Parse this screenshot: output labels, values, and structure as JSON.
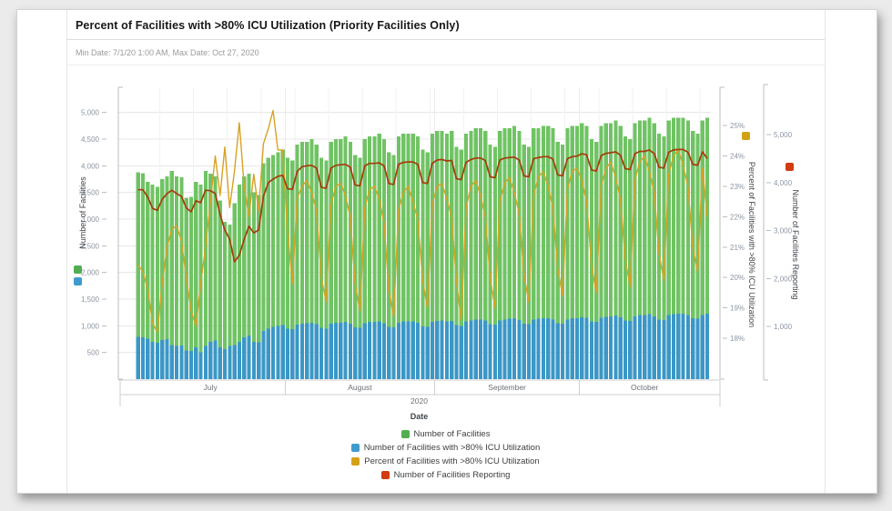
{
  "card": {
    "title": "Percent of Facilities with >80% ICU Utilization (Priority Facilities Only)",
    "subtitle": "Min Date: 7/1/20 1:00 AM, Max Date: Oct 27, 2020"
  },
  "chart_data": {
    "type": "combo: stacked-bar + line",
    "title": "Percent of Facilities with >80% ICU Utilization (Priority Facilities Only)",
    "x": {
      "label": "Date",
      "year": "2020",
      "months": [
        {
          "name": "July",
          "days": 31
        },
        {
          "name": "August",
          "days": 31
        },
        {
          "name": "September",
          "days": 30
        },
        {
          "name": "October",
          "days": 27
        }
      ],
      "start_date": "7/1/20",
      "end_date": "Oct 27, 2020"
    },
    "axes": {
      "left": {
        "title": "Number of Facilities",
        "ticks": [
          500,
          1000,
          1500,
          2000,
          2500,
          3000,
          3500,
          4000,
          4500,
          5000
        ],
        "max": 5470
      },
      "right_percent": {
        "title": "Percent of Facilities with >80% ICU Utilization",
        "ticks": [
          18,
          19,
          20,
          21,
          22,
          23,
          24,
          25
        ],
        "unit": "%"
      },
      "right_reporting": {
        "title": "Number of Facilities Reporting",
        "ticks": [
          1000,
          2000,
          3000,
          4000,
          5000
        ],
        "max": 6080
      }
    },
    "grid": {
      "horizontal": true,
      "vertical_weekly": true
    },
    "legend_position": "bottom",
    "series": [
      {
        "name": "Number of Facilities",
        "type": "bar-stack-total",
        "axis": "left",
        "color": "#70c364",
        "swatch": "#52ad52",
        "values": [
          3880,
          3860,
          3700,
          3650,
          3600,
          3750,
          3800,
          3900,
          3800,
          3780,
          3400,
          3420,
          3700,
          3650,
          3900,
          3850,
          3800,
          3350,
          2950,
          2900,
          3300,
          3650,
          3800,
          3850,
          3500,
          3450,
          4050,
          4150,
          4200,
          4250,
          4300,
          4150,
          4100,
          4400,
          4450,
          4450,
          4500,
          4400,
          4150,
          4100,
          4450,
          4500,
          4500,
          4550,
          4450,
          4200,
          4150,
          4500,
          4550,
          4550,
          4600,
          4500,
          4250,
          4200,
          4550,
          4600,
          4600,
          4600,
          4550,
          4300,
          4250,
          4600,
          4650,
          4650,
          4600,
          4650,
          4350,
          4300,
          4600,
          4650,
          4700,
          4700,
          4650,
          4400,
          4350,
          4650,
          4700,
          4700,
          4750,
          4650,
          4400,
          4350,
          4700,
          4700,
          4750,
          4750,
          4700,
          4450,
          4400,
          4700,
          4750,
          4750,
          4800,
          4750,
          4500,
          4450,
          4750,
          4800,
          4800,
          4850,
          4750,
          4550,
          4500,
          4800,
          4850,
          4850,
          4900,
          4800,
          4600,
          4550,
          4850,
          4900,
          4900,
          4900,
          4850,
          4650,
          4600,
          4850,
          4900
        ]
      },
      {
        "name": "Number of Facilities with >80% ICU Utilization",
        "type": "bar-stack-bottom",
        "axis": "left",
        "color": "#3b97c6",
        "swatch": "#3d9bce",
        "values": [
          790,
          780,
          760,
          700,
          680,
          730,
          750,
          640,
          620,
          630,
          540,
          530,
          600,
          500,
          620,
          700,
          720,
          600,
          560,
          620,
          640,
          700,
          780,
          820,
          700,
          690,
          900,
          950,
          980,
          1000,
          1010,
          950,
          940,
          1020,
          1040,
          1050,
          1060,
          1030,
          960,
          950,
          1040,
          1060,
          1060,
          1070,
          1040,
          970,
          960,
          1050,
          1070,
          1070,
          1080,
          1050,
          980,
          970,
          1060,
          1080,
          1080,
          1080,
          1060,
          990,
          980,
          1070,
          1090,
          1100,
          1080,
          1090,
          1010,
          1000,
          1080,
          1100,
          1120,
          1120,
          1100,
          1030,
          1020,
          1100,
          1120,
          1130,
          1140,
          1110,
          1040,
          1030,
          1120,
          1130,
          1140,
          1140,
          1120,
          1050,
          1040,
          1120,
          1140,
          1140,
          1160,
          1150,
          1080,
          1070,
          1150,
          1170,
          1180,
          1190,
          1160,
          1100,
          1090,
          1180,
          1200,
          1200,
          1220,
          1180,
          1120,
          1110,
          1200,
          1220,
          1230,
          1230,
          1200,
          1140,
          1130,
          1200,
          1230
        ]
      },
      {
        "name": "Percent of Facilities with >80% ICU Utilization",
        "type": "line",
        "axis": "right_percent",
        "color": "#d8a222",
        "swatch": "#d4a017",
        "values": [
          20.4,
          20.2,
          19.6,
          18.5,
          18.2,
          19.8,
          21,
          21.6,
          21.7,
          21.2,
          20,
          18.9,
          18.4,
          19.8,
          21,
          22.5,
          24,
          22.7,
          24.3,
          22.3,
          23.5,
          25.1,
          23,
          22,
          23.4,
          22.2,
          24.4,
          24.9,
          25.5,
          24.2,
          24.2,
          21.5,
          19.8,
          22.6,
          23,
          23.2,
          22.8,
          22.2,
          20,
          19.2,
          22.4,
          23,
          23.1,
          22.7,
          22,
          19.8,
          18.9,
          22.3,
          22.9,
          23,
          22.6,
          21.8,
          19.6,
          18.7,
          22.2,
          22.8,
          23,
          22.5,
          21.9,
          19.9,
          19,
          22.4,
          23,
          23.1,
          22.6,
          22,
          19.9,
          18.6,
          22.3,
          23,
          23.2,
          22.7,
          22,
          20,
          19,
          22.5,
          23.1,
          23.3,
          22.8,
          22.1,
          20.1,
          19.2,
          22.7,
          23.3,
          23.5,
          23,
          22.3,
          20.3,
          19.4,
          22.9,
          23.5,
          23.6,
          23.2,
          22.5,
          20.4,
          19.5,
          23,
          23.6,
          23.8,
          23.3,
          22.6,
          20.6,
          19.7,
          23.2,
          23.8,
          24,
          23.5,
          22.8,
          20.8,
          19.9,
          23.4,
          24,
          24.2,
          23.7,
          23,
          21,
          20.2,
          23.6,
          22
        ]
      },
      {
        "name": "Number of Facilities Reporting",
        "type": "line",
        "axis": "right_reporting",
        "color": "#a63c0b",
        "swatch": "#d13c10",
        "values": [
          3850,
          3850,
          3700,
          3460,
          3420,
          3650,
          3770,
          3840,
          3770,
          3710,
          3470,
          3390,
          3620,
          3580,
          3840,
          3830,
          3770,
          3330,
          3010,
          2820,
          2350,
          2480,
          2820,
          3090,
          2950,
          3010,
          3710,
          4000,
          4070,
          4130,
          4150,
          3870,
          3860,
          4230,
          4330,
          4350,
          4360,
          4300,
          3900,
          3880,
          4300,
          4360,
          4370,
          4380,
          4320,
          3950,
          3930,
          4350,
          4400,
          4400,
          4410,
          4350,
          3980,
          3960,
          4380,
          4420,
          4430,
          4430,
          4380,
          4000,
          3980,
          4400,
          4470,
          4480,
          4450,
          4460,
          4080,
          4060,
          4420,
          4480,
          4510,
          4510,
          4460,
          4120,
          4100,
          4470,
          4510,
          4520,
          4530,
          4470,
          4140,
          4120,
          4500,
          4520,
          4540,
          4540,
          4490,
          4160,
          4140,
          4500,
          4540,
          4550,
          4600,
          4580,
          4260,
          4240,
          4560,
          4610,
          4620,
          4640,
          4570,
          4290,
          4270,
          4600,
          4650,
          4650,
          4680,
          4600,
          4320,
          4300,
          4630,
          4680,
          4690,
          4690,
          4630,
          4380,
          4360,
          4640,
          4500
        ]
      }
    ]
  }
}
